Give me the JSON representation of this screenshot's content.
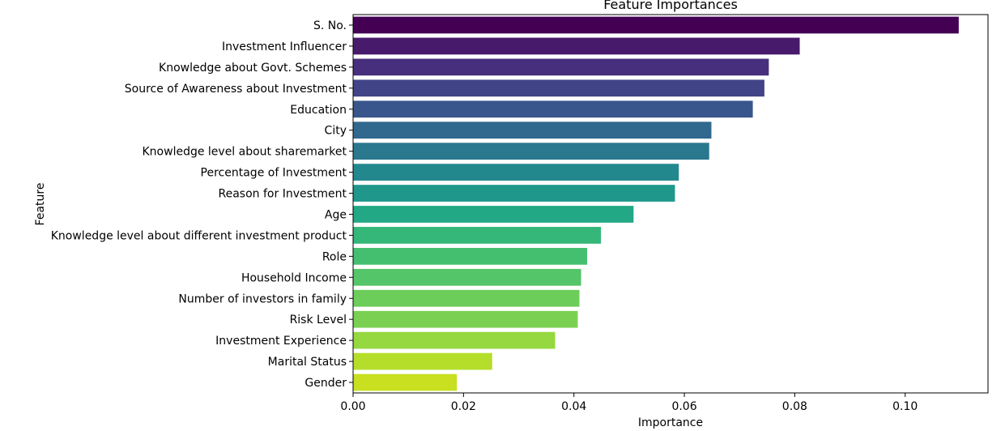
{
  "chart_data": {
    "type": "bar",
    "orientation": "horizontal",
    "title": "Feature Importances",
    "xlabel": "Importance",
    "ylabel": "Feature",
    "xlim": [
      0,
      0.115
    ],
    "xticks": [
      0.0,
      0.02,
      0.04,
      0.06,
      0.08,
      0.1
    ],
    "xtick_labels": [
      "0.00",
      "0.02",
      "0.04",
      "0.06",
      "0.08",
      "0.10"
    ],
    "grid": false,
    "legend": "none",
    "colormap": "viridis",
    "categories": [
      "S. No.",
      "Investment Influencer",
      "Knowledge about Govt. Schemes",
      "Source of Awareness about Investment",
      "Education",
      "City",
      "Knowledge level about sharemarket",
      "Percentage of Investment",
      "Reason for Investment",
      "Age",
      "Knowledge level about different investment product",
      "Role",
      "Household Income",
      "Number of investors in family",
      "Risk Level",
      "Investment Experience",
      "Marital Status",
      "Gender"
    ],
    "values": [
      0.1097,
      0.0809,
      0.0753,
      0.0745,
      0.0724,
      0.0649,
      0.0645,
      0.059,
      0.0583,
      0.0508,
      0.0449,
      0.0424,
      0.0413,
      0.041,
      0.0407,
      0.0366,
      0.0252,
      0.0188
    ],
    "colors": [
      "#440154",
      "#481a6c",
      "#472f7d",
      "#414487",
      "#39568c",
      "#31688e",
      "#2a788e",
      "#23888e",
      "#1f988b",
      "#22a884",
      "#35b779",
      "#44bf70",
      "#54c568",
      "#6ccd5a",
      "#7ad151",
      "#95d840",
      "#b5de2b",
      "#c8e020"
    ]
  }
}
